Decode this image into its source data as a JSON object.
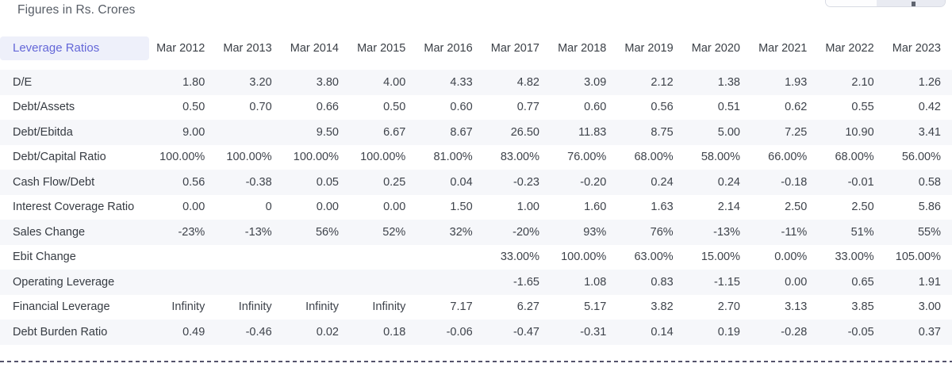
{
  "note": "Figures in Rs. Crores",
  "colors": {
    "accent": "#6467d8",
    "section_header_bg": "#eef0fa",
    "row_alt_bg": "#f6f7fa",
    "header_text": "#3b4047",
    "cell_text": "#3e434b",
    "note_text": "#575d66",
    "dashed_divider": "#55536b",
    "cutoff_segment_bg": "#e9ebf2",
    "cutoff_border": "#d8dae3"
  },
  "table": {
    "section_label": "Leverage Ratios",
    "columns": [
      "Mar 2012",
      "Mar 2013",
      "Mar 2014",
      "Mar 2015",
      "Mar 2016",
      "Mar 2017",
      "Mar 2018",
      "Mar 2019",
      "Mar 2020",
      "Mar 2021",
      "Mar 2022",
      "Mar 2023"
    ],
    "rows": [
      {
        "label": "D/E",
        "values": [
          "1.80",
          "3.20",
          "3.80",
          "4.00",
          "4.33",
          "4.82",
          "3.09",
          "2.12",
          "1.38",
          "1.93",
          "2.10",
          "1.26"
        ]
      },
      {
        "label": "Debt/Assets",
        "values": [
          "0.50",
          "0.70",
          "0.66",
          "0.50",
          "0.60",
          "0.77",
          "0.60",
          "0.56",
          "0.51",
          "0.62",
          "0.55",
          "0.42"
        ]
      },
      {
        "label": "Debt/Ebitda",
        "values": [
          "9.00",
          "",
          "9.50",
          "6.67",
          "8.67",
          "26.50",
          "11.83",
          "8.75",
          "5.00",
          "7.25",
          "10.90",
          "3.41"
        ]
      },
      {
        "label": "Debt/Capital Ratio",
        "values": [
          "100.00%",
          "100.00%",
          "100.00%",
          "100.00%",
          "81.00%",
          "83.00%",
          "76.00%",
          "68.00%",
          "58.00%",
          "66.00%",
          "68.00%",
          "56.00%"
        ]
      },
      {
        "label": "Cash Flow/Debt",
        "values": [
          "0.56",
          "-0.38",
          "0.05",
          "0.25",
          "0.04",
          "-0.23",
          "-0.20",
          "0.24",
          "0.24",
          "-0.18",
          "-0.01",
          "0.58"
        ]
      },
      {
        "label": "Interest Coverage Ratio",
        "values": [
          "0.00",
          "0",
          "0.00",
          "0.00",
          "1.50",
          "1.00",
          "1.60",
          "1.63",
          "2.14",
          "2.50",
          "2.50",
          "5.86"
        ]
      },
      {
        "label": "Sales Change",
        "values": [
          "-23%",
          "-13%",
          "56%",
          "52%",
          "32%",
          "-20%",
          "93%",
          "76%",
          "-13%",
          "-11%",
          "51%",
          "55%"
        ]
      },
      {
        "label": "Ebit Change",
        "values": [
          "",
          "",
          "",
          "",
          "",
          "33.00%",
          "100.00%",
          "63.00%",
          "15.00%",
          "0.00%",
          "33.00%",
          "105.00%"
        ]
      },
      {
        "label": "Operating Leverage",
        "values": [
          "",
          "",
          "",
          "",
          "",
          "-1.65",
          "1.08",
          "0.83",
          "-1.15",
          "0.00",
          "0.65",
          "1.91"
        ]
      },
      {
        "label": "Financial Leverage",
        "values": [
          "Infinity",
          "Infinity",
          "Infinity",
          "Infinity",
          "7.17",
          "6.27",
          "5.17",
          "3.82",
          "2.70",
          "3.13",
          "3.85",
          "3.00"
        ]
      },
      {
        "label": "Debt Burden Ratio",
        "values": [
          "0.49",
          "-0.46",
          "0.02",
          "0.18",
          "-0.06",
          "-0.47",
          "-0.31",
          "0.14",
          "0.19",
          "-0.28",
          "-0.05",
          "0.37"
        ]
      }
    ]
  }
}
